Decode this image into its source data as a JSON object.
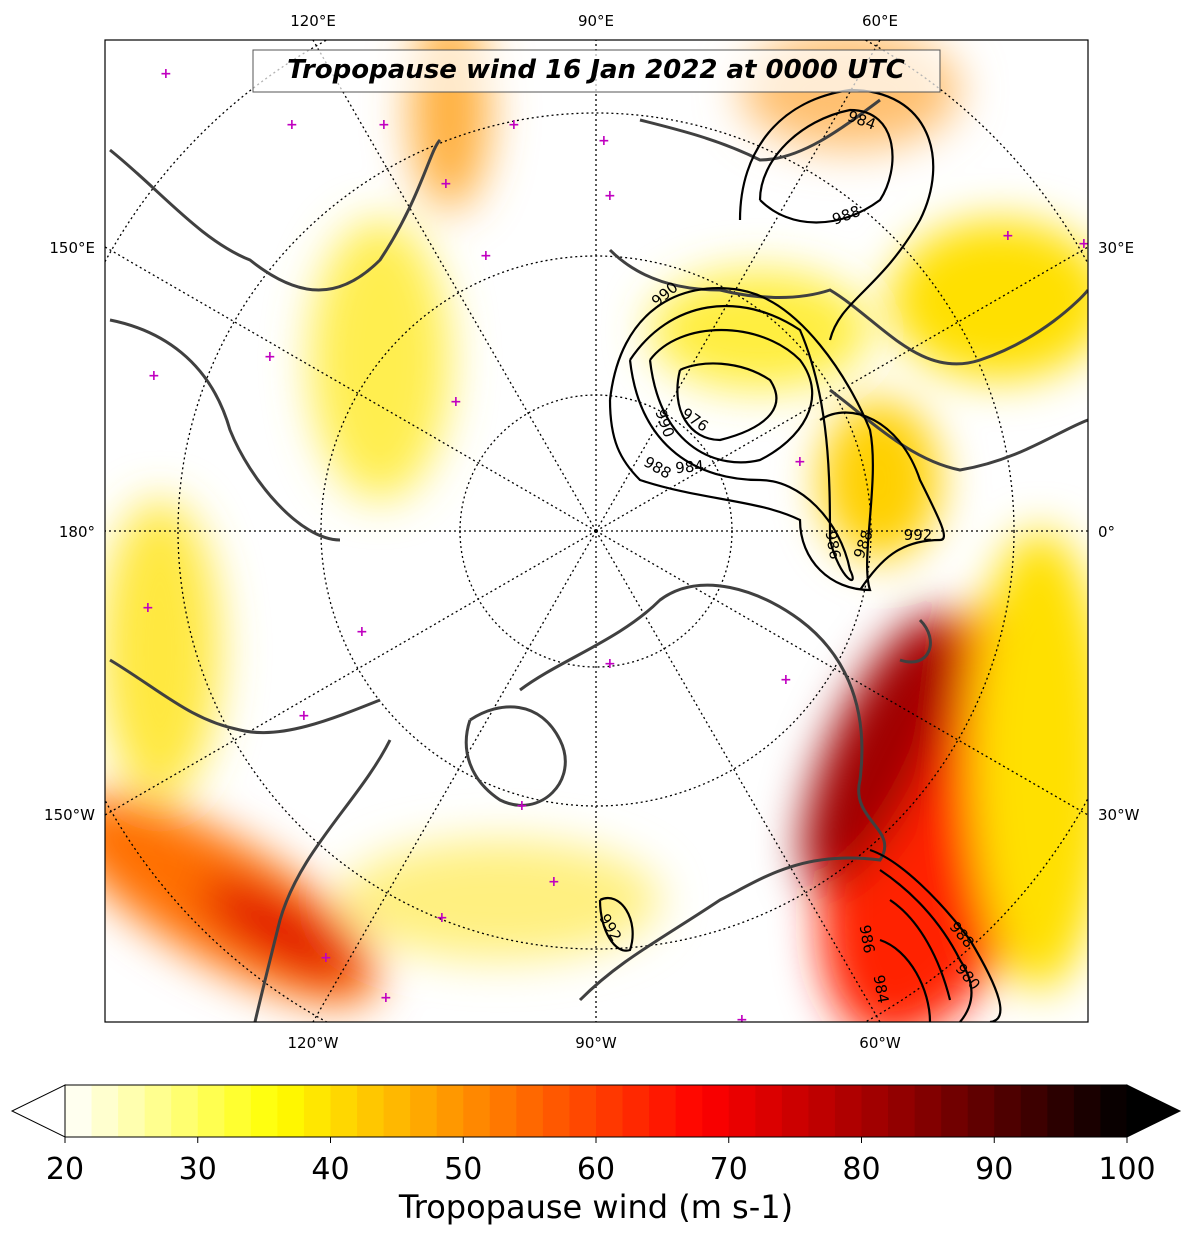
{
  "title": "Tropopause wind 16 Jan 2022 at 0000 UTC",
  "longitude_labels": {
    "top": [
      "120°E",
      "90°E",
      "60°E"
    ],
    "left": [
      "150°E",
      "180°",
      "150°W"
    ],
    "right": [
      "30°E",
      "0°",
      "30°W"
    ],
    "bottom": [
      "120°W",
      "90°W",
      "60°W"
    ]
  },
  "contour_labels": [
    "984",
    "988",
    "990",
    "976",
    "990",
    "988",
    "984",
    "986",
    "988",
    "992",
    "992",
    "988",
    "980",
    "986",
    "984"
  ],
  "colorbar": {
    "label": "Tropopause wind (m s-1)",
    "lim": [
      20,
      100
    ],
    "ticks": [
      20,
      30,
      40,
      50,
      60,
      70,
      80,
      90,
      100
    ],
    "colors": [
      "#ffffff",
      "#ffff00",
      "#ff8000",
      "#ff0000",
      "#8b0000",
      "#000000"
    ]
  }
}
